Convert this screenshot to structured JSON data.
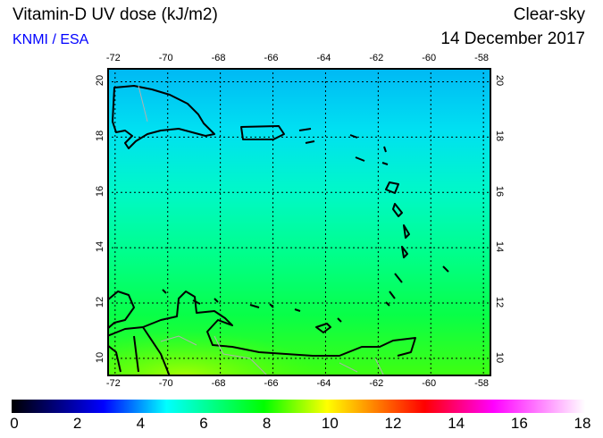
{
  "header": {
    "title": "Vitamin-D UV dose (kJ/m2)",
    "org": "KNMI / ESA",
    "sky": "Clear-sky",
    "date": "14 December 2017"
  },
  "map": {
    "lon_range": [
      -72.3,
      -57.7
    ],
    "lat_range": [
      9.35,
      20.5
    ],
    "lon_ticks": [
      "-72",
      "-70",
      "-68",
      "-66",
      "-64",
      "-62",
      "-60",
      "-58"
    ],
    "lat_ticks": [
      "20",
      "18",
      "16",
      "14",
      "12",
      "10"
    ],
    "field_colors": {
      "north": "#00b8f4",
      "south": "#40ff10"
    }
  },
  "colorbar": {
    "labels": [
      "0",
      "2",
      "4",
      "6",
      "8",
      "10",
      "12",
      "14",
      "16",
      "18"
    ],
    "min": 0,
    "max": 18
  }
}
